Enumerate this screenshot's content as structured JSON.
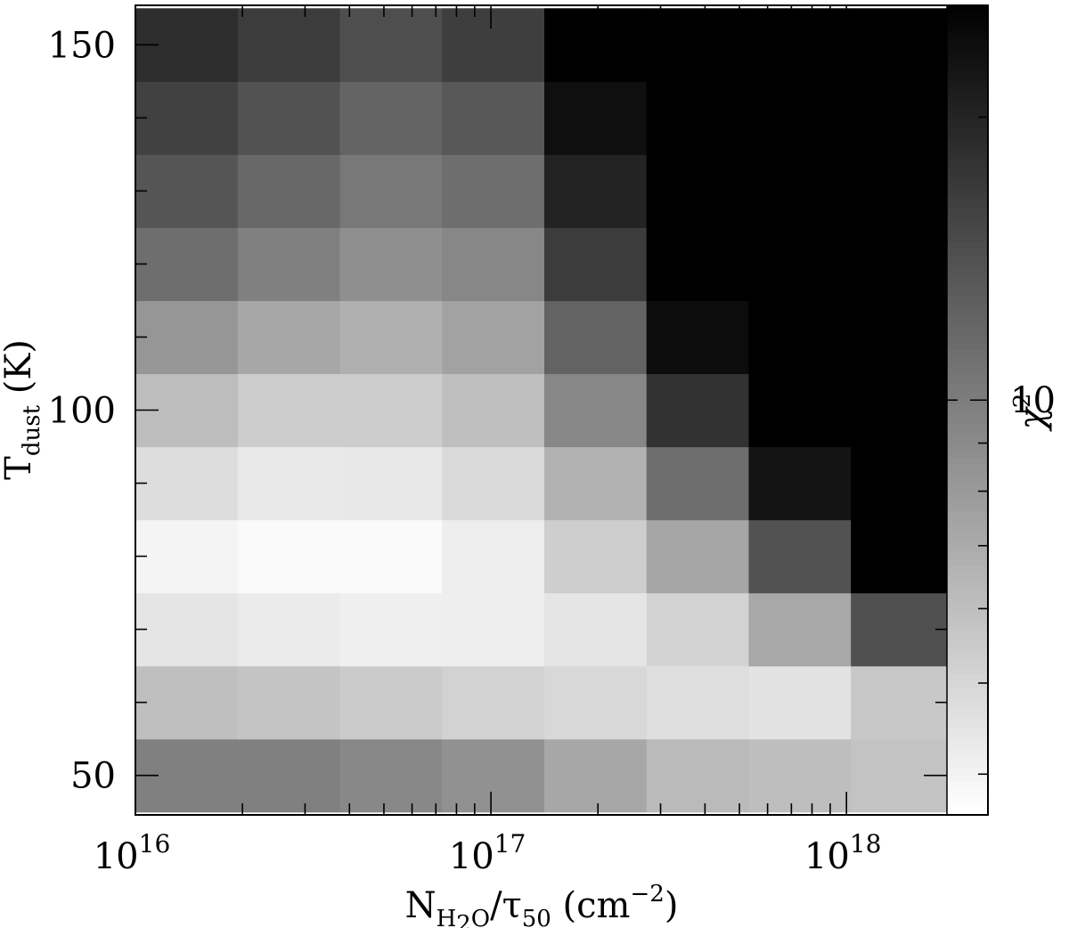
{
  "chart_data": {
    "type": "heatmap",
    "title": "",
    "x": {
      "scale": "log",
      "range": [
        1e+16,
        2.5e+18
      ],
      "label_parts": {
        "main": "N",
        "sub": "H",
        "subsub": "2",
        "sub2": "O",
        "rest": "/τ",
        "rest_sub": "50",
        "unit_open": " (cm",
        "unit_sup": "−2",
        "unit_close": ")"
      },
      "major_ticks": [
        1e+16,
        1e+17,
        1e+18
      ],
      "tick_labels": [
        {
          "base": "10",
          "exp": "16"
        },
        {
          "base": "10",
          "exp": "17"
        },
        {
          "base": "10",
          "exp": "18"
        }
      ],
      "cell_edges_log10": [
        16.0,
        16.2875,
        16.575,
        16.8625,
        17.15,
        17.4375,
        17.725,
        18.0125,
        18.3
      ]
    },
    "y": {
      "scale": "linear",
      "range": [
        44.6,
        155.4
      ],
      "label_parts": {
        "main": "T",
        "sub": "dust",
        "rest": " (K)"
      },
      "major_ticks": [
        50,
        100,
        150
      ],
      "tick_labels": [
        "50",
        "100",
        "150"
      ],
      "minor_ticks": [
        60,
        70,
        80,
        90,
        110,
        120,
        130,
        140
      ],
      "cell_edges": [
        45,
        55,
        65,
        75,
        85,
        95,
        105,
        115,
        125,
        135,
        145,
        155
      ]
    },
    "colorbar": {
      "label_base": "χ",
      "label_sup": "2",
      "scale": "log",
      "range": [
        3.62,
        26.3
      ],
      "tick_labels": [
        "10"
      ],
      "major_ticks": [
        10
      ],
      "minor_ticks": [
        4,
        5,
        6,
        7,
        8,
        9,
        20
      ],
      "colormap": "white (low) to black (high)"
    },
    "grid": false,
    "cells_gray_bottom_to_top": [
      [
        128,
        128,
        136,
        145,
        167,
        186,
        190,
        195
      ],
      [
        191,
        196,
        203,
        210,
        216,
        222,
        226,
        200
      ],
      [
        229,
        235,
        239,
        238,
        229,
        211,
        168,
        80
      ],
      [
        244,
        250,
        250,
        237,
        206,
        166,
        82,
        0
      ],
      [
        221,
        233,
        232,
        218,
        178,
        110,
        20,
        0
      ],
      [
        189,
        204,
        205,
        191,
        135,
        50,
        0,
        0
      ],
      [
        150,
        167,
        176,
        162,
        99,
        12,
        0,
        0
      ],
      [
        110,
        128,
        143,
        135,
        60,
        0,
        0,
        0
      ],
      [
        85,
        104,
        120,
        110,
        35,
        0,
        0,
        0
      ],
      [
        65,
        82,
        100,
        88,
        15,
        0,
        0,
        0
      ],
      [
        45,
        60,
        78,
        62,
        0,
        0,
        0,
        0
      ]
    ]
  }
}
